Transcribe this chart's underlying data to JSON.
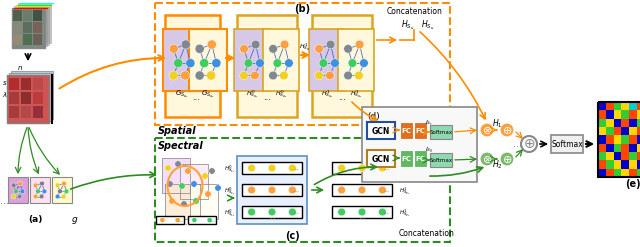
{
  "fig_width": 6.4,
  "fig_height": 2.47,
  "dpi": 100,
  "bg_color": "#ffffff",
  "orange": "#FF8C00",
  "dark_orange": "#E07000",
  "green": "#2E8B22",
  "blue": "#1E6FCC",
  "gold": "#DAA520",
  "purple_bg": "#D8C8E8",
  "yellow_bg": "#FFF8DC",
  "pink_bg": "#FFE0E8",
  "lavender_bg": "#E8D8F0",
  "node_orange": "#FFA040",
  "node_gray": "#808890",
  "node_green": "#40CD60",
  "node_blue": "#4090E0",
  "node_yellow": "#F0D020",
  "edge_blue": "#4060C0",
  "fc_orange_bg": "#E07020",
  "fc_green_bg": "#60B860",
  "softmax_bg": "#90D8B0",
  "gcn_blue_border": "#2050A0",
  "gcn_yellow_border": "#B08020",
  "labels": {
    "a": "(a)",
    "b": "(b)",
    "c": "(c)",
    "d": "(d)",
    "e": "(e)",
    "spatial": "Spatial",
    "spectral": "Spectral",
    "gcn": "GCN",
    "fc": "FC",
    "softmax": "Softmax",
    "concatenation": "Concatenation",
    "g": "g"
  },
  "hsi_map_colors": [
    [
      "#0000CC",
      "#FF4500",
      "#32CD32",
      "#FFD700",
      "#00CED1",
      "#FF4500",
      "#0000CC",
      "#FFD700",
      "#FF4500"
    ],
    [
      "#FF4500",
      "#0000CC",
      "#FFD700",
      "#32CD32",
      "#FF4500",
      "#FFD700",
      "#00CED1",
      "#0000CC",
      "#32CD32"
    ],
    [
      "#32CD32",
      "#FFD700",
      "#0000CC",
      "#FF4500",
      "#0000CC",
      "#32CD32",
      "#FF4500",
      "#FFD700",
      "#0000CC"
    ],
    [
      "#FFD700",
      "#32CD32",
      "#FF4500",
      "#0000CC",
      "#FFD700",
      "#FF4500",
      "#0000CC",
      "#32CD32",
      "#FF4500"
    ],
    [
      "#0000CC",
      "#FF4500",
      "#FFD700",
      "#32CD32",
      "#FF4500",
      "#0000CC",
      "#FFD700",
      "#FF4500",
      "#32CD32"
    ],
    [
      "#FF4500",
      "#0000CC",
      "#32CD32",
      "#FF4500",
      "#0000CC",
      "#FFD700",
      "#FF4500",
      "#0000CC",
      "#FFD700"
    ],
    [
      "#32CD32",
      "#FFD700",
      "#0000CC",
      "#FF4500",
      "#32CD32",
      "#FF4500",
      "#0000CC",
      "#32CD32",
      "#FF4500"
    ],
    [
      "#FF4500",
      "#32CD32",
      "#FFD700",
      "#0000CC",
      "#FFD700",
      "#0000CC",
      "#32CD32",
      "#FF4500",
      "#0000CC"
    ],
    [
      "#0000CC",
      "#FF4500",
      "#32CD32",
      "#FFD700",
      "#FF4500",
      "#32CD32",
      "#FFD700",
      "#0000CC",
      "#32CD32"
    ]
  ]
}
